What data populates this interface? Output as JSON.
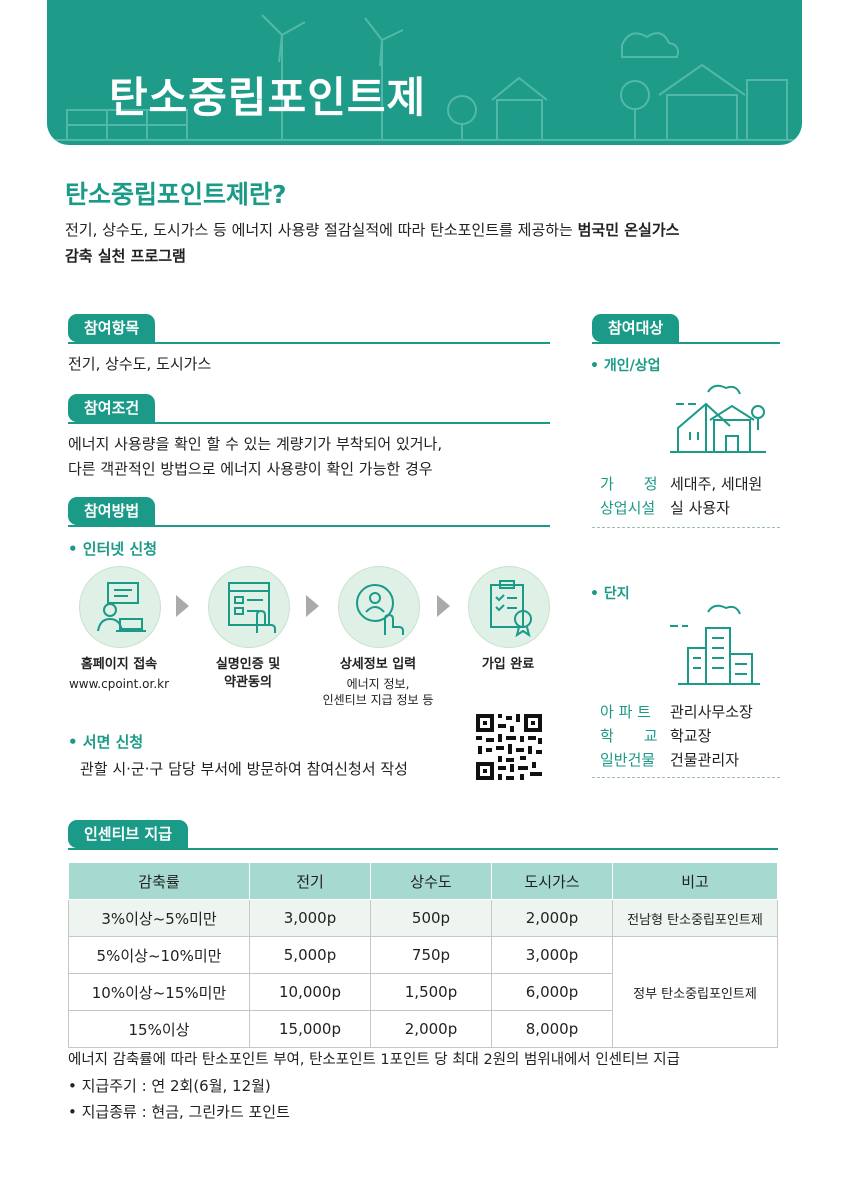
{
  "banner": {
    "title": "탄소중립포인트제"
  },
  "intro": {
    "heading": "탄소중립포인트제란?",
    "text_a": "전기, 상수도, 도시가스 등 에너지 사용량 절감실적에 따라 탄소포인트를 제공하는 ",
    "text_bold_a": "범국민 온실가스",
    "text_bold_b": "감축 실천 프로그램"
  },
  "items": {
    "tag": "참여항목",
    "text": "전기, 상수도, 도시가스"
  },
  "conditions": {
    "tag": "참여조건",
    "line1": "에너지 사용량을 확인 할 수 있는 계량기가 부착되어 있거나,",
    "line2": "다른 객관적인 방법으로 에너지 사용량이 확인 가능한 경우"
  },
  "method": {
    "tag": "참여방법",
    "online": "• 인터넷 신청",
    "steps": [
      {
        "label": "홈페이지 접속",
        "sub": "www.cpoint.or.kr",
        "icon": "computer-user-icon"
      },
      {
        "label": "실명인증 및\n약관동의",
        "sub": "",
        "icon": "form-touch-icon"
      },
      {
        "label": "상세정보 입력",
        "sub": "에너지 정보,\n인센티브 지급 정보 등",
        "icon": "user-search-icon"
      },
      {
        "label": "가입 완료",
        "sub": "",
        "icon": "certificate-icon"
      }
    ],
    "offline": "• 서면 신청",
    "offline_text": "관할 시·군·구 담당 부서에 방문하여 참여신청서 작성"
  },
  "target": {
    "tag": "참여대상",
    "individual": {
      "title": "• 개인/상업",
      "rows": [
        {
          "k": "가　　정",
          "v": "세대주, 세대원"
        },
        {
          "k": "상업시설",
          "v": "실 사용자"
        }
      ]
    },
    "complex": {
      "title": "• 단지",
      "rows": [
        {
          "k": "아 파 트",
          "v": "관리사무소장"
        },
        {
          "k": "학　　교",
          "v": "학교장"
        },
        {
          "k": "일반건물",
          "v": "건물관리자"
        }
      ]
    }
  },
  "incentive": {
    "tag": "인센티브 지급",
    "headers": [
      "감축률",
      "전기",
      "상수도",
      "도시가스",
      "비고"
    ],
    "rows": [
      [
        "3%이상~5%미만",
        "3,000p",
        "500p",
        "2,000p"
      ],
      [
        "5%이상~10%미만",
        "5,000p",
        "750p",
        "3,000p"
      ],
      [
        "10%이상~15%미만",
        "10,000p",
        "1,500p",
        "6,000p"
      ],
      [
        "15%이상",
        "15,000p",
        "2,000p",
        "8,000p"
      ]
    ],
    "note_first": "전남형 탄소중립포인트제",
    "note_rest": "정부 탄소중립포인트제",
    "foot1": "에너지 감축률에 따라 탄소포인트 부여, 탄소포인트 1포인트 당 최대 2원의 범위내에서 인센티브 지급",
    "foot2": "• 지급주기 : 연 2회(6월, 12월)",
    "foot3": "• 지급종류 : 현금, 그린카드 포인트"
  },
  "colors": {
    "primary": "#1b9a88",
    "banner": "#1f9b8a",
    "table_header": "#a6d9cf",
    "step_bg": "#dff0e6"
  }
}
